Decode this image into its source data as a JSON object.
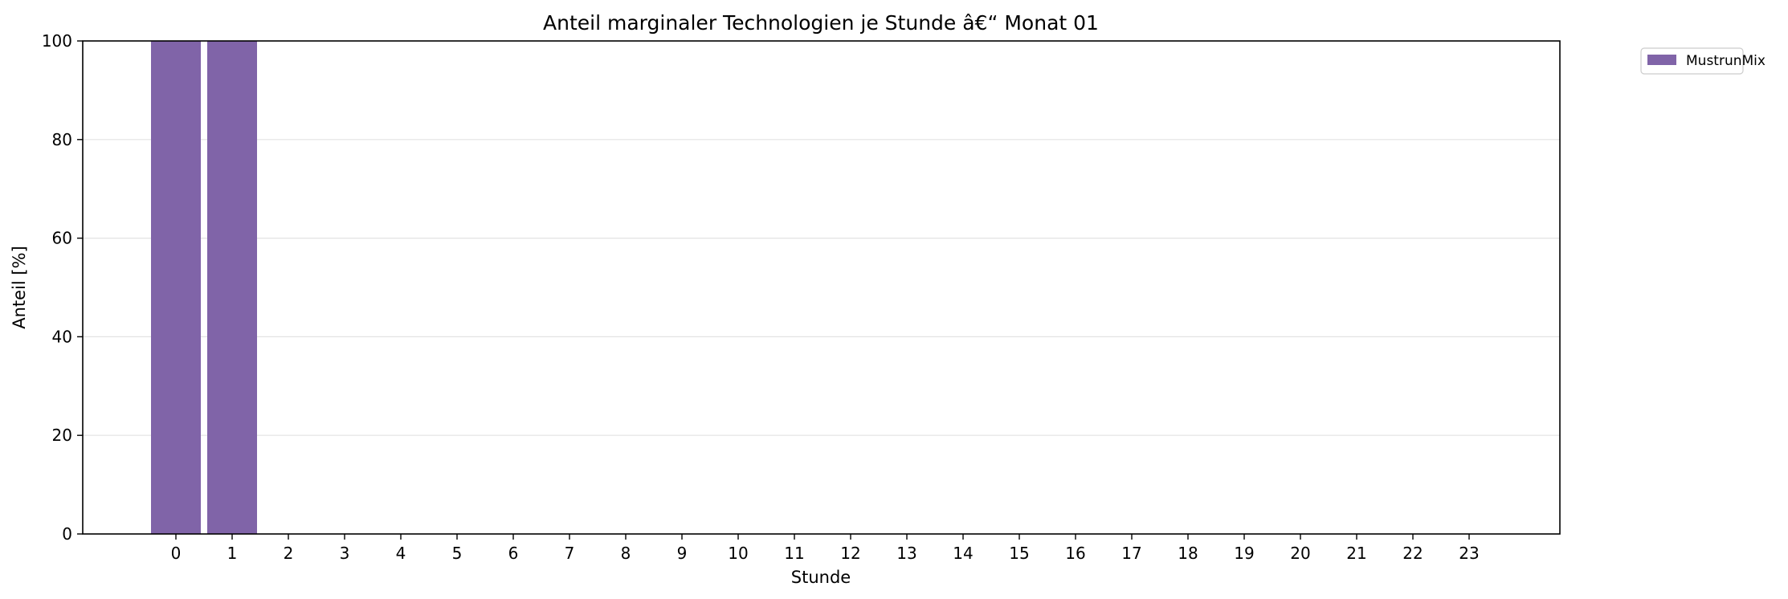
{
  "chart_data": {
    "type": "bar",
    "title": "Anteil marginaler Technologien je Stunde â€“ Monat 01",
    "xlabel": "Stunde",
    "ylabel": "Anteil [%]",
    "ylim": [
      0,
      100
    ],
    "yticks": [
      0,
      20,
      40,
      60,
      80,
      100
    ],
    "categories": [
      "0",
      "1",
      "2",
      "3",
      "4",
      "5",
      "6",
      "7",
      "8",
      "9",
      "10",
      "11",
      "12",
      "13",
      "14",
      "15",
      "16",
      "17",
      "18",
      "19",
      "20",
      "21",
      "22",
      "23"
    ],
    "series": [
      {
        "name": "MustrunMix",
        "color": "#8064a8",
        "values": [
          100,
          100,
          0,
          0,
          0,
          0,
          0,
          0,
          0,
          0,
          0,
          0,
          0,
          0,
          0,
          0,
          0,
          0,
          0,
          0,
          0,
          0,
          0,
          0
        ]
      }
    ],
    "grid": "y",
    "legend_position": "outside-top-right"
  }
}
